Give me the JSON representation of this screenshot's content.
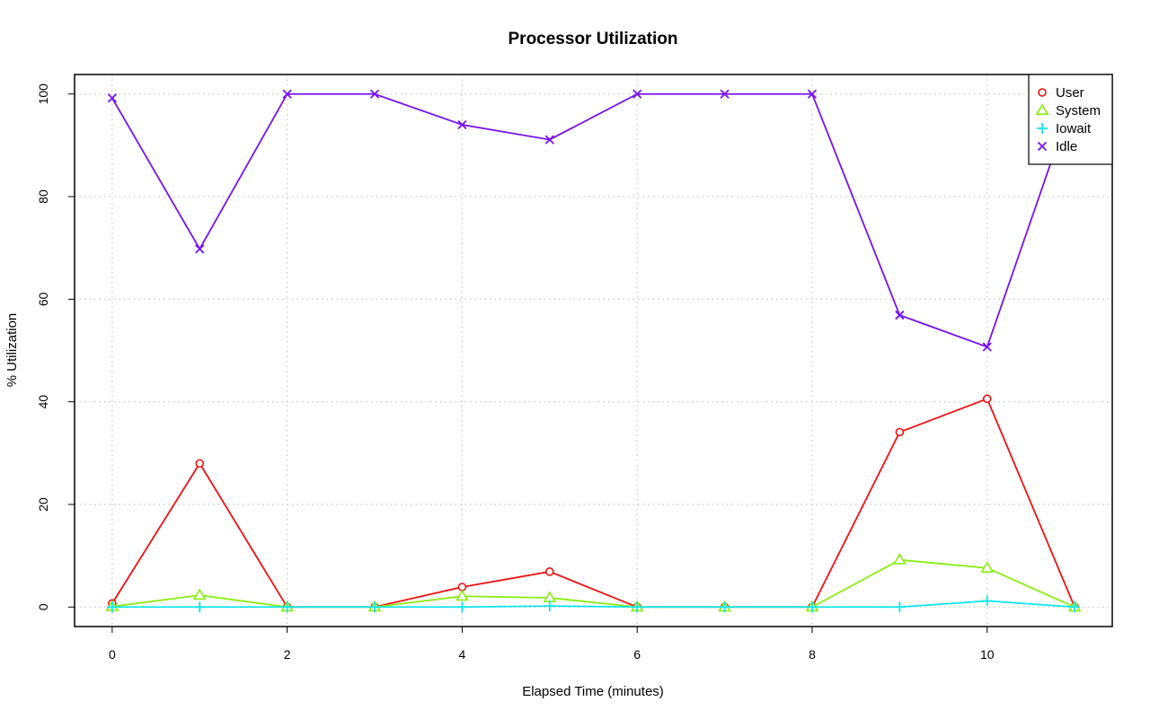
{
  "chart_data": {
    "type": "line",
    "title": "Processor Utilization",
    "xlabel": "Elapsed Time (minutes)",
    "ylabel": "% Utilization",
    "x": [
      0,
      1,
      2,
      3,
      4,
      5,
      6,
      7,
      8,
      9,
      10,
      11
    ],
    "xlim": [
      -0.43,
      11.43
    ],
    "ylim": [
      -3.8,
      103.8
    ],
    "xticks": [
      0,
      2,
      4,
      6,
      8,
      10
    ],
    "yticks": [
      0,
      20,
      40,
      60,
      80,
      100
    ],
    "grid": true,
    "legend_position": "top-right",
    "series": [
      {
        "name": "User",
        "color": "#ee1111",
        "marker": "circle",
        "values": [
          0.7,
          28,
          0,
          0,
          3.9,
          6.9,
          0,
          0,
          0,
          34.1,
          40.6,
          0
        ]
      },
      {
        "name": "System",
        "color": "#88ee11",
        "marker": "triangle",
        "values": [
          0.1,
          2.3,
          0,
          0,
          2.1,
          1.8,
          0,
          0,
          0,
          9.2,
          7.6,
          0
        ]
      },
      {
        "name": "Iowait",
        "color": "#11e5ee",
        "marker": "plus",
        "values": [
          0,
          0,
          0,
          0,
          0,
          0.2,
          0,
          0,
          0,
          0,
          1.2,
          0
        ]
      },
      {
        "name": "Idle",
        "color": "#7711ee",
        "marker": "cross",
        "values": [
          99.2,
          69.8,
          100,
          100,
          94,
          91.1,
          100,
          100,
          100,
          56.9,
          50.7,
          100
        ]
      }
    ]
  }
}
